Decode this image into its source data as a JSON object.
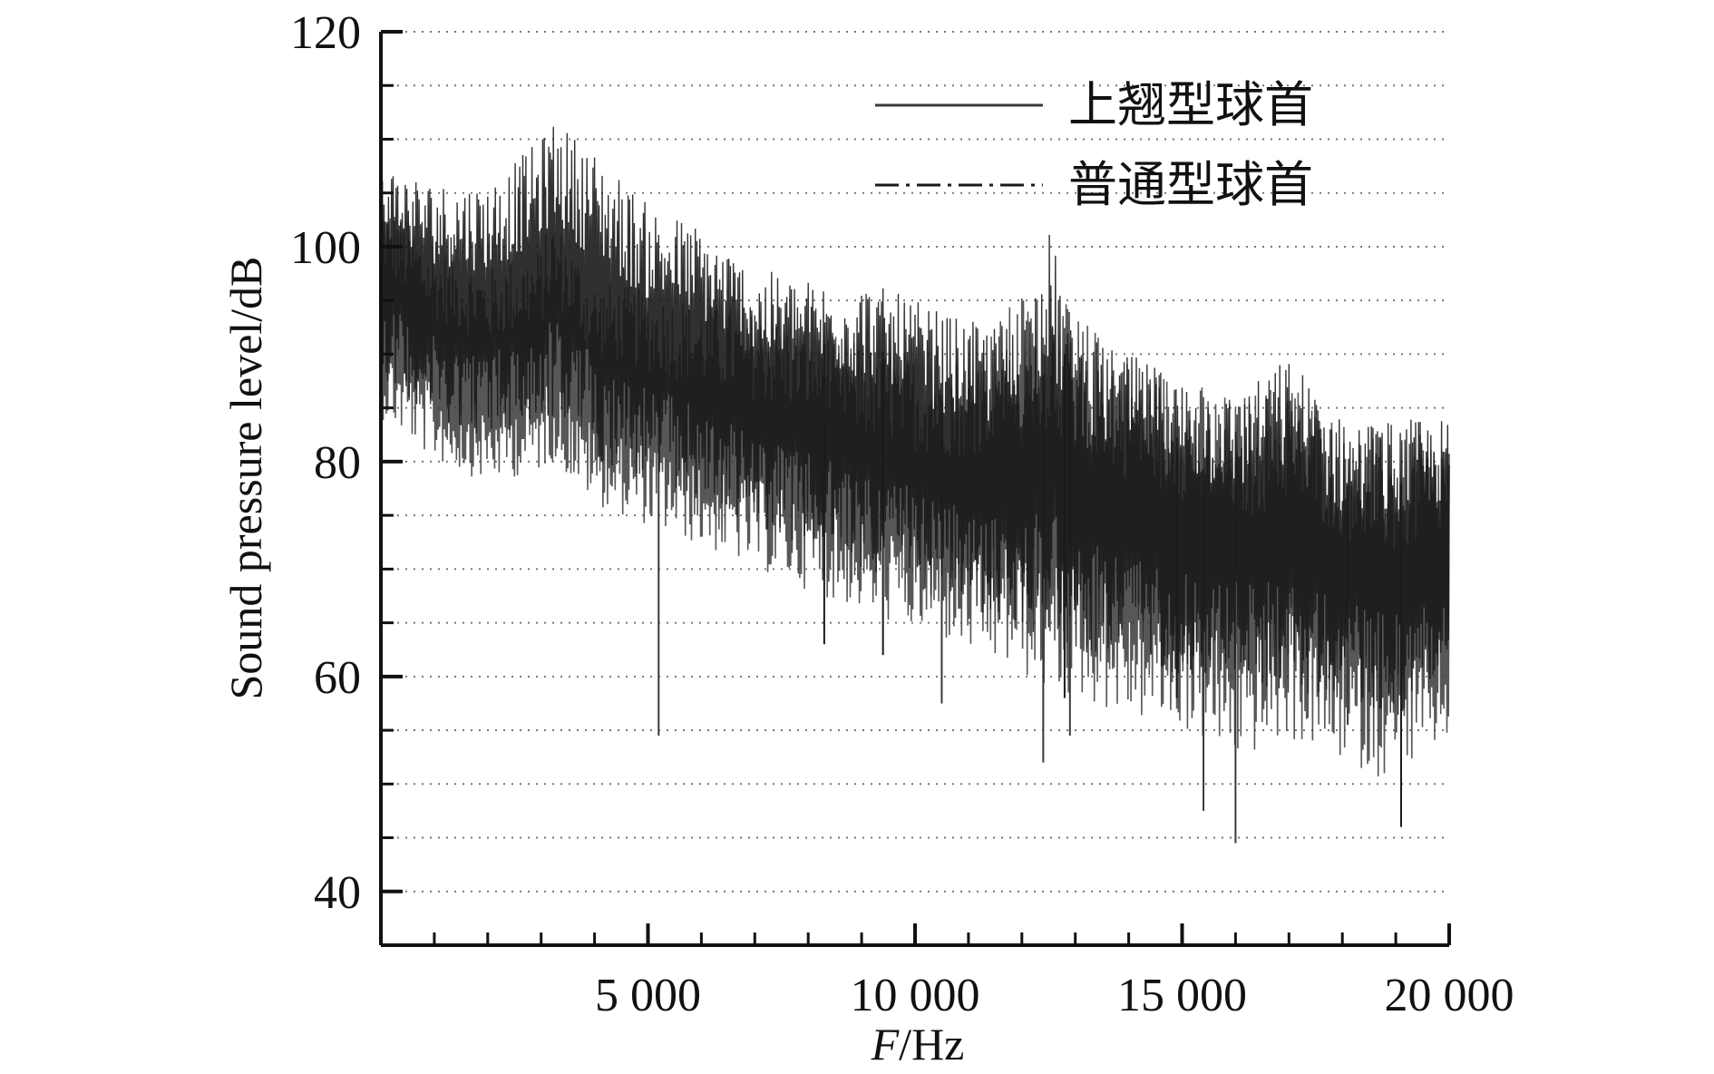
{
  "chart_data": {
    "type": "line",
    "title": "",
    "xlabel_italic": "F",
    "xlabel_unit": "/Hz",
    "ylabel": "Sound pressure level/dB",
    "xlim": [
      0,
      20000
    ],
    "ylim": [
      35,
      120
    ],
    "x_ticks": [
      5000,
      10000,
      15000,
      20000
    ],
    "x_tick_labels": [
      "5 000",
      "10 000",
      "15 000",
      "20 000"
    ],
    "x_minor_step": 1000,
    "y_ticks": [
      40,
      60,
      80,
      100,
      120
    ],
    "y_tick_labels": [
      "40",
      "60",
      "80",
      "100",
      "120"
    ],
    "y_minor_step": 5,
    "grid": "horizontal-dotted",
    "legend_position": "top-right",
    "series": [
      {
        "name": "上翘型球首",
        "style": "solid",
        "color": "#3a3a3a",
        "envelope": {
          "x": [
            0,
            1000,
            2000,
            3000,
            3200,
            4000,
            5000,
            6000,
            7000,
            8000,
            9000,
            10000,
            11000,
            12000,
            12500,
            13000,
            14000,
            15000,
            16000,
            17000,
            18000,
            19000,
            20000
          ],
          "high": [
            105,
            100,
            98,
            100,
            103,
            97,
            96,
            95,
            94,
            93,
            91,
            90,
            90,
            96,
            96,
            94,
            90,
            88,
            86,
            88,
            84,
            82,
            83
          ],
          "low": [
            84,
            80,
            78,
            79,
            80,
            76,
            74,
            72,
            70,
            68,
            66,
            64,
            62,
            60,
            58,
            58,
            56,
            55,
            52,
            54,
            52,
            50,
            54
          ]
        },
        "dips": [
          [
            5200,
            54.5
          ],
          [
            10500,
            57.5
          ],
          [
            12400,
            52
          ],
          [
            12900,
            54.5
          ],
          [
            15400,
            47.5
          ],
          [
            16000,
            44.5
          ],
          [
            18100,
            55.5
          ]
        ]
      },
      {
        "name": "普通型球首",
        "style": "dash-dot",
        "color": "#1a1a1a",
        "envelope": {
          "x": [
            0,
            1000,
            2000,
            3000,
            3200,
            4000,
            5000,
            6000,
            7000,
            8000,
            9000,
            10000,
            11000,
            12000,
            12500,
            13000,
            14000,
            15000,
            16000,
            17000,
            18000,
            19000,
            20000
          ],
          "high": [
            108,
            106,
            106,
            110,
            112,
            109,
            104,
            102,
            98,
            97,
            97,
            95,
            93,
            93,
            102,
            92,
            90,
            88,
            86,
            90,
            84,
            84,
            84
          ],
          "low": [
            88,
            84,
            82,
            83,
            84,
            80,
            78,
            76,
            74,
            72,
            70,
            68,
            66,
            64,
            64,
            62,
            62,
            60,
            60,
            58,
            58,
            56,
            60
          ]
        },
        "dips": [
          [
            8300,
            63
          ],
          [
            9400,
            62
          ],
          [
            12800,
            58
          ],
          [
            14900,
            58
          ],
          [
            19100,
            46
          ]
        ]
      }
    ]
  }
}
